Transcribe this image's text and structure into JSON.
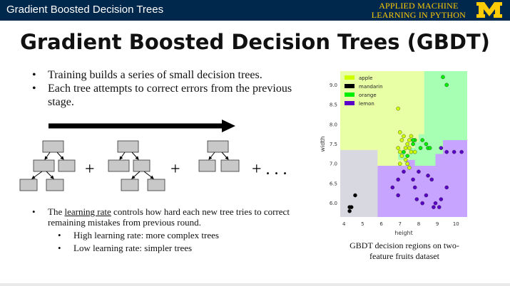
{
  "header": {
    "title": "Gradient Boosted Decision Trees",
    "brand_line1": "APPLIED MACHINE",
    "brand_line2": "LEARNING IN PYTHON",
    "colors": {
      "bar": "#00274c",
      "accent": "#ffcb05"
    }
  },
  "slide": {
    "title": "Gradient Boosted Decision Trees (GBDT)",
    "bullets": [
      "Training builds a series of small decision trees.",
      "Each tree attempts to correct errors from the previous stage."
    ],
    "plus_signs": [
      "+",
      "+",
      "+ . . ."
    ],
    "lower": {
      "prefix": "The ",
      "term": "learning rate",
      "rest": " controls how hard each new tree tries to correct remaining mistakes from previous round.",
      "sub": [
        "High learning rate: more complex trees",
        "Low learning rate: simpler trees"
      ]
    },
    "caption": "GBDT decision regions on two-feature fruits dataset"
  },
  "chart_data": {
    "type": "scatter",
    "xlabel": "height",
    "ylabel": "width",
    "xlim": [
      3.8,
      10.6
    ],
    "ylim": [
      5.65,
      9.35
    ],
    "xticks": [
      4,
      5,
      6,
      7,
      8,
      9,
      10
    ],
    "yticks": [
      6.0,
      6.5,
      7.0,
      7.5,
      8.0,
      8.5,
      9.0
    ],
    "legend_position": "top-left",
    "series": [
      {
        "name": "apple",
        "color": "#ccff00",
        "points": [
          [
            6.9,
            8.4
          ],
          [
            7.0,
            7.8
          ],
          [
            7.1,
            7.6
          ],
          [
            7.2,
            7.7
          ],
          [
            7.4,
            7.5
          ],
          [
            7.5,
            7.6
          ],
          [
            7.3,
            7.4
          ],
          [
            7.5,
            7.4
          ],
          [
            7.6,
            7.3
          ],
          [
            7.0,
            7.3
          ],
          [
            7.1,
            7.2
          ],
          [
            7.3,
            7.1
          ],
          [
            7.4,
            7.0
          ],
          [
            7.5,
            6.9
          ],
          [
            7.0,
            7.0
          ],
          [
            6.9,
            7.4
          ],
          [
            7.8,
            7.3
          ],
          [
            7.6,
            7.7
          ]
        ]
      },
      {
        "name": "mandarin",
        "color": "#000000",
        "points": [
          [
            4.3,
            5.9
          ],
          [
            4.4,
            5.9
          ],
          [
            4.3,
            5.8
          ],
          [
            4.6,
            6.2
          ]
        ]
      },
      {
        "name": "orange",
        "color": "#00ee00",
        "points": [
          [
            9.3,
            9.2
          ],
          [
            9.5,
            9.0
          ],
          [
            7.8,
            7.6
          ],
          [
            8.4,
            7.5
          ],
          [
            8.5,
            7.4
          ],
          [
            8.6,
            7.4
          ],
          [
            8.1,
            7.4
          ],
          [
            7.7,
            7.5
          ],
          [
            7.2,
            7.3
          ],
          [
            7.4,
            7.2
          ],
          [
            7.7,
            7.6
          ],
          [
            8.2,
            7.6
          ]
        ]
      },
      {
        "name": "lemon",
        "color": "#5a00c8",
        "points": [
          [
            8.0,
            6.8
          ],
          [
            8.5,
            6.7
          ],
          [
            8.7,
            6.6
          ],
          [
            8.4,
            6.2
          ],
          [
            8.9,
            6.0
          ],
          [
            9.5,
            6.4
          ],
          [
            9.2,
            6.1
          ],
          [
            8.8,
            5.9
          ],
          [
            8.2,
            6.0
          ],
          [
            7.8,
            6.4
          ],
          [
            7.2,
            6.8
          ],
          [
            6.9,
            6.6
          ],
          [
            6.6,
            6.4
          ],
          [
            6.9,
            6.2
          ],
          [
            7.7,
            6.6
          ],
          [
            9.5,
            7.3
          ],
          [
            9.9,
            7.3
          ],
          [
            10.3,
            7.3
          ],
          [
            9.2,
            7.4
          ],
          [
            7.9,
            6.1
          ],
          [
            9.1,
            5.9
          ]
        ]
      }
    ],
    "regions": [
      {
        "label": "apple",
        "color": "#e9ffa6"
      },
      {
        "label": "mandarin",
        "color": "#d8d8e0"
      },
      {
        "label": "orange",
        "color": "#a6ffb3"
      },
      {
        "label": "lemon",
        "color": "#c6a4ff"
      }
    ]
  }
}
